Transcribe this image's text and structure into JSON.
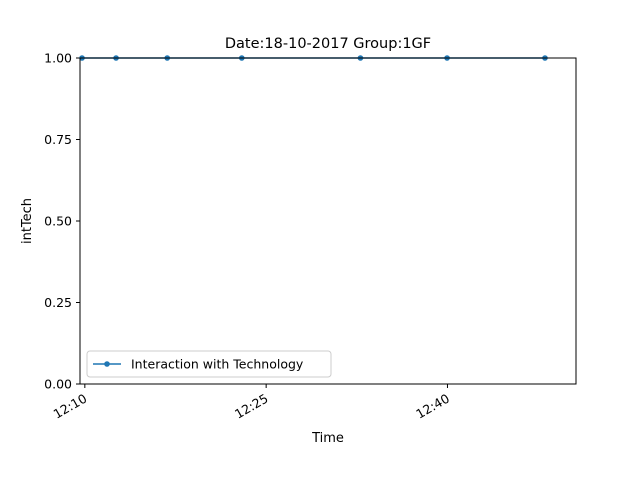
{
  "chart_data": {
    "type": "line",
    "title": "Date:18-10-2017  Group:1GF",
    "xlabel": "Time",
    "ylabel": "intTech",
    "x_type": "time",
    "xlim": [
      "12:09:36",
      "12:50:38"
    ],
    "ylim": [
      0.0,
      1.0
    ],
    "x_ticks": [
      "12:10",
      "12:25",
      "12:40"
    ],
    "y_ticks": [
      "0.00",
      "0.25",
      "0.50",
      "0.75",
      "1.00"
    ],
    "legend_position": "lower-left",
    "grid": false,
    "series": [
      {
        "name": "Interaction with Technology",
        "color": "#1f77b4",
        "marker": "circle",
        "x": [
          "12:09:46",
          "12:12:35",
          "12:16:49",
          "12:22:59",
          "12:32:48",
          "12:39:58",
          "12:48:04"
        ],
        "y": [
          1,
          1,
          1,
          1,
          1,
          1,
          1
        ]
      }
    ]
  }
}
